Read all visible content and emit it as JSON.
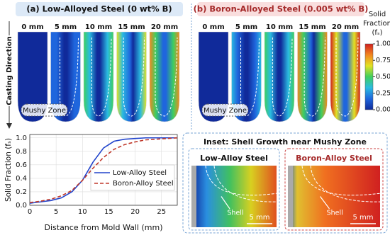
{
  "panel_a": {
    "title": "(a) Low-Alloyed Steel (0 wt% B)",
    "positions": [
      "0 mm",
      "5 mm",
      "10 mm",
      "15 mm",
      "20 mm"
    ],
    "mushy_label": "Mushy Zone"
  },
  "panel_b": {
    "title": "(b) Boron-Alloyed Steel (0.005 wt% B)",
    "positions": [
      "0 mm",
      "5 mm",
      "10 mm",
      "15 mm",
      "20 mm"
    ],
    "mushy_label": "Mushy Zone"
  },
  "casting_direction": "Casting Direction",
  "colorbar": {
    "title": [
      "Solid",
      "Fraction",
      "(fₛ)"
    ],
    "lim": [
      0,
      1
    ],
    "ticks": [
      {
        "value": 1,
        "label": "1.00"
      },
      {
        "value": 0.75,
        "label": "0.75"
      },
      {
        "value": 0.5,
        "label": "0.50"
      },
      {
        "value": 0.25,
        "label": "0.25"
      },
      {
        "value": 0,
        "label": "0.00"
      }
    ]
  },
  "inset": {
    "title": "Inset: Shell Growth near Mushy Zone",
    "panels": [
      {
        "title": "Low-Alloy Steel",
        "shell": "Shell",
        "scale": "5 mm"
      },
      {
        "title": "Boron-Alloy Steel",
        "shell": "Shell",
        "scale": "5 mm"
      }
    ]
  },
  "chart_data": {
    "type": "line",
    "x_label": "Distance from Mold Wall (mm)",
    "y_label": "Solid Fraction (fₛ)",
    "x": [
      0,
      2,
      4,
      6,
      8,
      10,
      12,
      14,
      16,
      18,
      20,
      22,
      24,
      26,
      28
    ],
    "series": [
      {
        "name": "Low-Alloy Steel",
        "color": "#2244cc",
        "style": "solid",
        "values": [
          0.03,
          0.05,
          0.07,
          0.11,
          0.2,
          0.37,
          0.64,
          0.85,
          0.95,
          0.98,
          0.99,
          1.0,
          1.0,
          1.0,
          1.0
        ]
      },
      {
        "name": "Boron-Alloy Steel",
        "color": "#c0392b",
        "style": "dashed",
        "values": [
          0.04,
          0.06,
          0.09,
          0.14,
          0.22,
          0.37,
          0.55,
          0.71,
          0.83,
          0.9,
          0.94,
          0.97,
          0.98,
          0.99,
          1.0
        ]
      }
    ],
    "xlim": [
      0,
      28
    ],
    "ylim": [
      0,
      1.05
    ],
    "xticks": [
      0,
      5,
      10,
      15,
      20,
      25
    ],
    "yticks": [
      {
        "value": 0,
        "label": "0.0"
      },
      0.2,
      0.4,
      0.6,
      0.8,
      {
        "value": 1,
        "label": "1.0"
      }
    ],
    "grid": true
  }
}
